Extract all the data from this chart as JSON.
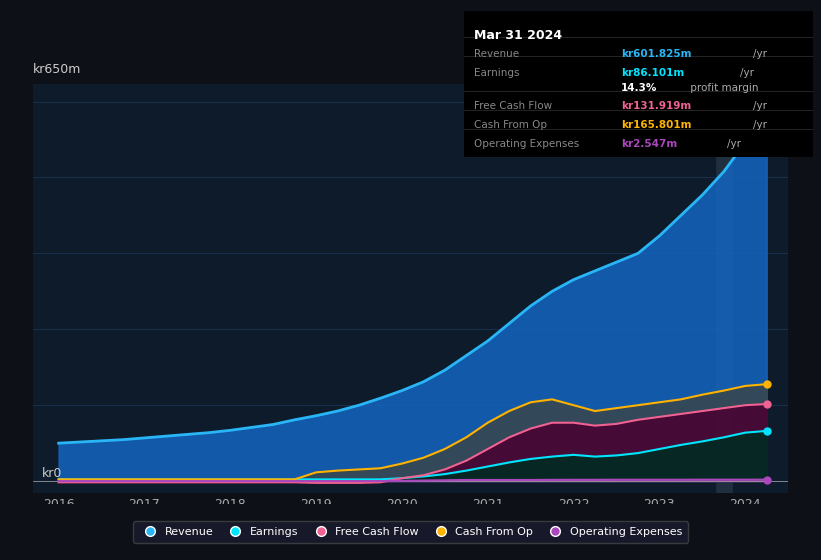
{
  "bg_color": "#0d1117",
  "chart_bg": "#0d1b2a",
  "grid_color": "#1e3a5f",
  "title_box": {
    "date": "Mar 31 2024",
    "rows": [
      {
        "label": "Revenue",
        "value": "kr601.825m",
        "unit": "/yr",
        "value_color": "#29b6f6"
      },
      {
        "label": "Earnings",
        "value": "kr86.101m",
        "unit": "/yr",
        "value_color": "#00e5ff"
      },
      {
        "label": "",
        "value": "14.3%",
        "unit": " profit margin",
        "value_color": "#ffffff"
      },
      {
        "label": "Free Cash Flow",
        "value": "kr131.919m",
        "unit": "/yr",
        "value_color": "#f06292"
      },
      {
        "label": "Cash From Op",
        "value": "kr165.801m",
        "unit": "/yr",
        "value_color": "#ffb300"
      },
      {
        "label": "Operating Expenses",
        "value": "kr2.547m",
        "unit": "/yr",
        "value_color": "#ab47bc"
      }
    ]
  },
  "ylabel_text": "kr650m",
  "y0_text": "kr0",
  "years": [
    2016,
    2016.25,
    2016.5,
    2016.75,
    2017,
    2017.25,
    2017.5,
    2017.75,
    2018,
    2018.25,
    2018.5,
    2018.75,
    2019,
    2019.25,
    2019.5,
    2019.75,
    2020,
    2020.25,
    2020.5,
    2020.75,
    2021,
    2021.25,
    2021.5,
    2021.75,
    2022,
    2022.25,
    2022.5,
    2022.75,
    2023,
    2023.25,
    2023.5,
    2023.75,
    2024,
    2024.25
  ],
  "revenue": [
    65,
    67,
    69,
    71,
    74,
    77,
    80,
    83,
    87,
    92,
    97,
    105,
    112,
    120,
    130,
    142,
    155,
    170,
    190,
    215,
    240,
    270,
    300,
    325,
    345,
    360,
    375,
    390,
    420,
    455,
    490,
    530,
    580,
    602
  ],
  "earnings": [
    3,
    3,
    3,
    3,
    3,
    3,
    3,
    3,
    3,
    3,
    3,
    3,
    3,
    3,
    3,
    3,
    5,
    8,
    12,
    18,
    25,
    32,
    38,
    42,
    45,
    42,
    44,
    48,
    55,
    62,
    68,
    75,
    83,
    86
  ],
  "fcf": [
    -2,
    -2,
    -2,
    -2,
    -2,
    -2,
    -2,
    -2,
    -2,
    -2,
    -2,
    -2,
    -3,
    -3,
    -3,
    -2,
    5,
    10,
    20,
    35,
    55,
    75,
    90,
    100,
    100,
    95,
    98,
    105,
    110,
    115,
    120,
    125,
    130,
    132
  ],
  "cash_from_op": [
    3,
    3,
    3,
    3,
    3,
    3,
    3,
    3,
    3,
    3,
    3,
    3,
    15,
    18,
    20,
    22,
    30,
    40,
    55,
    75,
    100,
    120,
    135,
    140,
    130,
    120,
    125,
    130,
    135,
    140,
    148,
    155,
    163,
    166
  ],
  "op_expenses": [
    0,
    0,
    0,
    0,
    0,
    0,
    0,
    0,
    0,
    0,
    0,
    0,
    0,
    0,
    0,
    0,
    0.5,
    1,
    1.5,
    2,
    2,
    2,
    2,
    2.2,
    2.3,
    2.3,
    2.4,
    2.4,
    2.4,
    2.4,
    2.5,
    2.5,
    2.5,
    2.55
  ],
  "revenue_color": "#29b6f6",
  "earnings_color": "#00e5ff",
  "fcf_color": "#f06292",
  "cash_color": "#ffb300",
  "opex_color": "#ab47bc",
  "revenue_fill": "#1565c0",
  "earnings_fill": "#004d40",
  "fcf_fill": "#880e4f",
  "cash_fill": "#5d4037",
  "opex_fill": "#6a1b9a",
  "xlim": [
    2015.7,
    2024.5
  ],
  "ylim": [
    -20,
    680
  ],
  "xticks": [
    2016,
    2017,
    2018,
    2019,
    2020,
    2021,
    2022,
    2023,
    2024
  ],
  "legend_entries": [
    {
      "label": "Revenue",
      "color": "#29b6f6"
    },
    {
      "label": "Earnings",
      "color": "#00e5ff"
    },
    {
      "label": "Free Cash Flow",
      "color": "#f06292"
    },
    {
      "label": "Cash From Op",
      "color": "#ffb300"
    },
    {
      "label": "Operating Expenses",
      "color": "#ab47bc"
    }
  ]
}
